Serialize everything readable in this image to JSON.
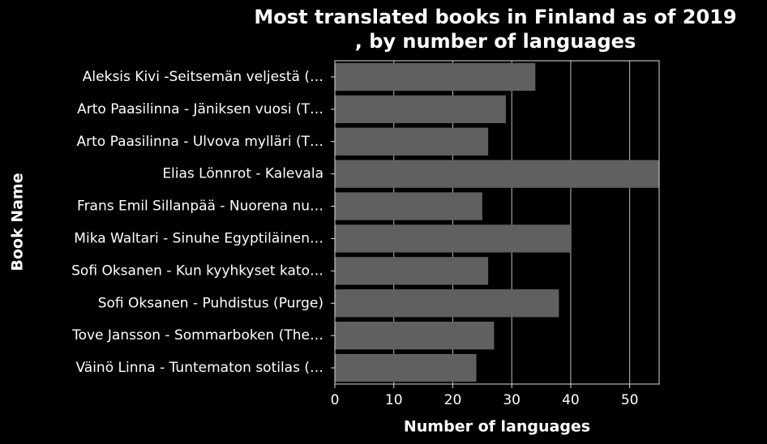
{
  "chart_data": {
    "type": "barh",
    "title": [
      "Most translated books in Finland as of 2019",
      ", by number of languages"
    ],
    "x_label": "Number of languages",
    "y_label": "Book Name",
    "categories": [
      "Aleksis Kivi -Seitsemän veljestä (…",
      "Arto Paasilinna - Jäniksen vuosi (T…",
      "Arto Paasilinna - Ulvova mylläri (T…",
      "Elias Lönnrot - Kalevala",
      "Frans Emil Sillanpää - Nuorena nu…",
      "Mika Waltari - Sinuhe Egyptiläinen…",
      "Sofi Oksanen - Kun kyyhkyset kato…",
      "Sofi Oksanen - Puhdistus (Purge)",
      "Tove Jansson - Sommarboken (The…",
      "Väinö Linna - Tuntematon sotilas (…"
    ],
    "values": [
      34,
      29,
      26,
      55,
      25,
      40,
      26,
      38,
      27,
      24
    ],
    "color": "#606060",
    "xlim": [
      0,
      55
    ],
    "xticks": [
      0,
      10,
      20,
      30,
      40,
      50
    ],
    "grid": true
  }
}
